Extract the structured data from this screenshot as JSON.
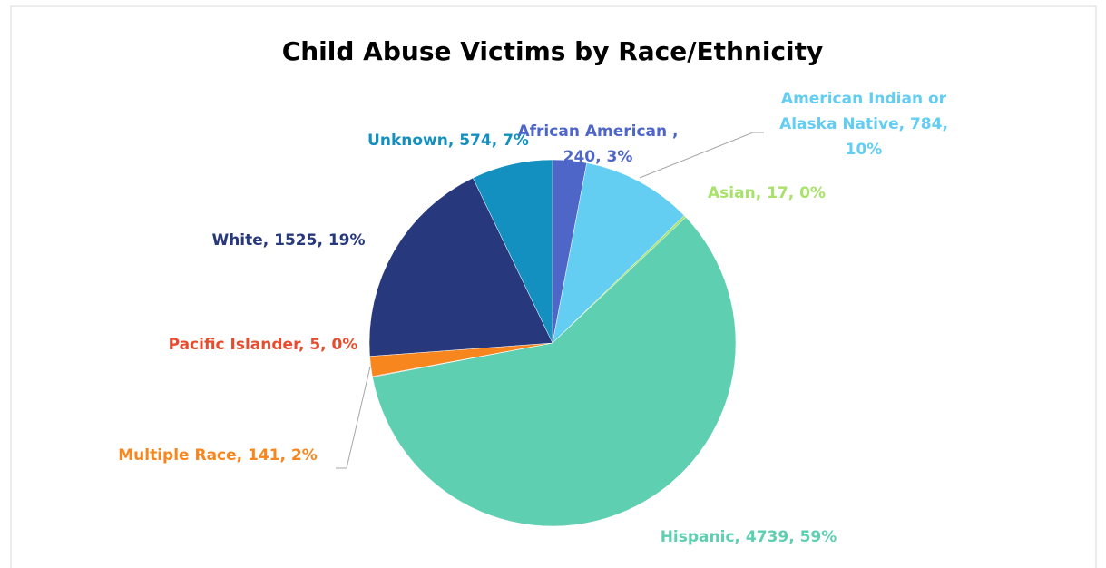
{
  "chart_data": {
    "type": "pie",
    "title": "Child Abuse Victims by Race/Ethnicity",
    "values": [
      240,
      784,
      17,
      4739,
      5,
      141,
      1525,
      574
    ],
    "value_labels": [
      "African American , 240, 3%",
      "American Indian or Alaska Native, 784, 10%",
      "Asian, 17, 0%",
      "Hispanic, 4739, 59%",
      "Pacific Islander, 5, 0%",
      "Multiple Race, 141, 2%",
      "White, 1525, 19%",
      "Unknown, 574, 7%"
    ],
    "colors": [
      "#4f66c9",
      "#63cdf2",
      "#a8e26a",
      "#5ecfb1",
      "#e84c2e",
      "#f7861f",
      "#27397c",
      "#1390c0"
    ]
  }
}
